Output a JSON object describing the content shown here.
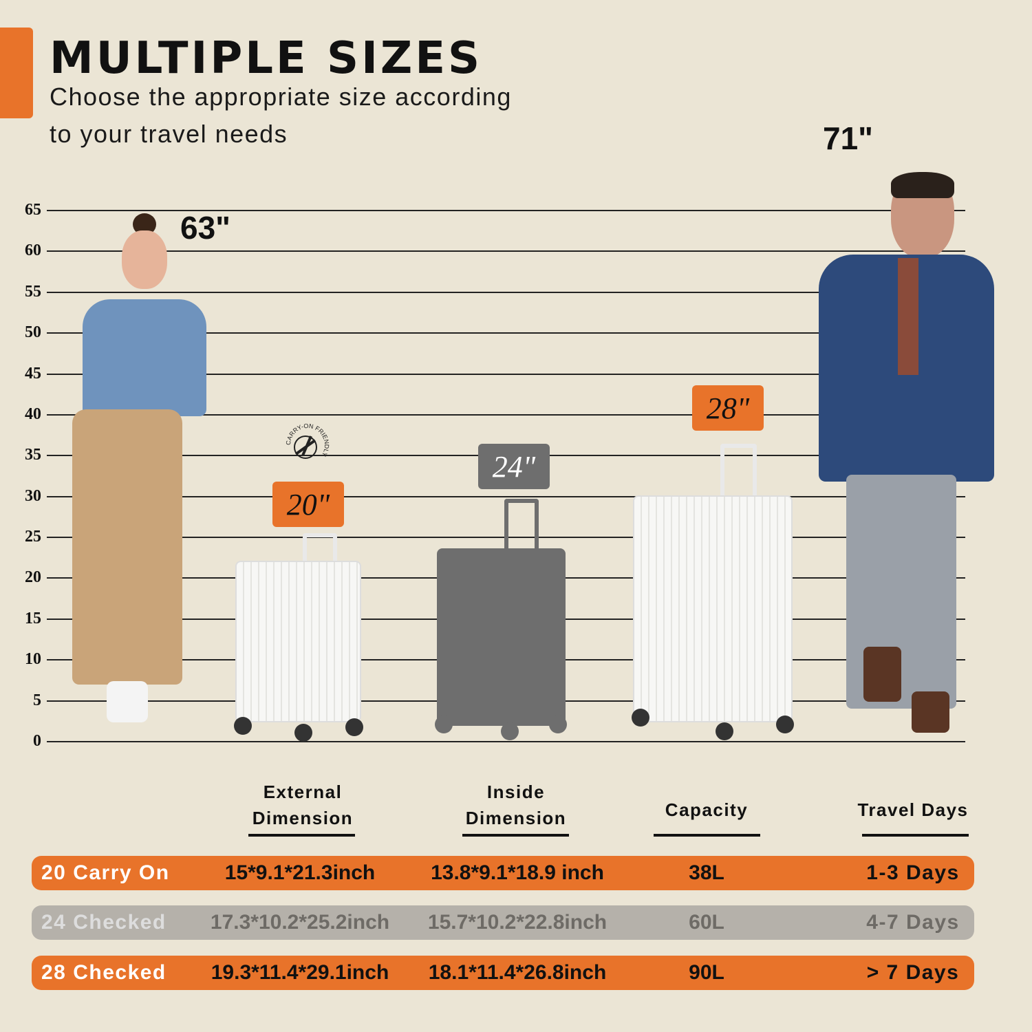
{
  "header": {
    "title": "MULTIPLE SIZES",
    "subtitle_line1": "Choose the appropriate size according",
    "subtitle_line2": "to your travel needs"
  },
  "colors": {
    "accent": "#e8732a",
    "gray_row": "#b5b1aa",
    "gray_badge": "#6e6e6e",
    "background": "#ebe5d5"
  },
  "scale": {
    "ticks": [
      0,
      5,
      10,
      15,
      20,
      25,
      30,
      35,
      40,
      45,
      50,
      55,
      60,
      65
    ],
    "unit": "inch"
  },
  "people": [
    {
      "label": "63\"",
      "height": 63
    },
    {
      "label": "71\"",
      "height": 71
    }
  ],
  "suitcases": [
    {
      "label": "20\"",
      "badge_color": "#e8732a"
    },
    {
      "label": "24\"",
      "badge_color": "#6e6e6e"
    },
    {
      "label": "28\"",
      "badge_color": "#e8732a"
    }
  ],
  "carry_on_stamp": "CARRY-ON FRIENDLY",
  "table": {
    "headers": [
      "External Dimension",
      "Inside Dimension",
      "Capacity",
      "Travel Days"
    ],
    "headers_lines": [
      [
        "External",
        "Dimension"
      ],
      [
        "Inside",
        "Dimension"
      ],
      [
        "Capacity"
      ],
      [
        "Travel Days"
      ]
    ],
    "rows": [
      {
        "name": "20 Carry On",
        "external": "15*9.1*21.3inch",
        "inside": "13.8*9.1*18.9 inch",
        "capacity": "38L",
        "days": "1-3 Days"
      },
      {
        "name": "24 Checked",
        "external": "17.3*10.2*25.2inch",
        "inside": "15.7*10.2*22.8inch",
        "capacity": "60L",
        "days": "4-7 Days"
      },
      {
        "name": "28 Checked",
        "external": "19.3*11.4*29.1inch",
        "inside": "18.1*11.4*26.8inch",
        "capacity": "90L",
        "days": "> 7 Days"
      }
    ]
  }
}
